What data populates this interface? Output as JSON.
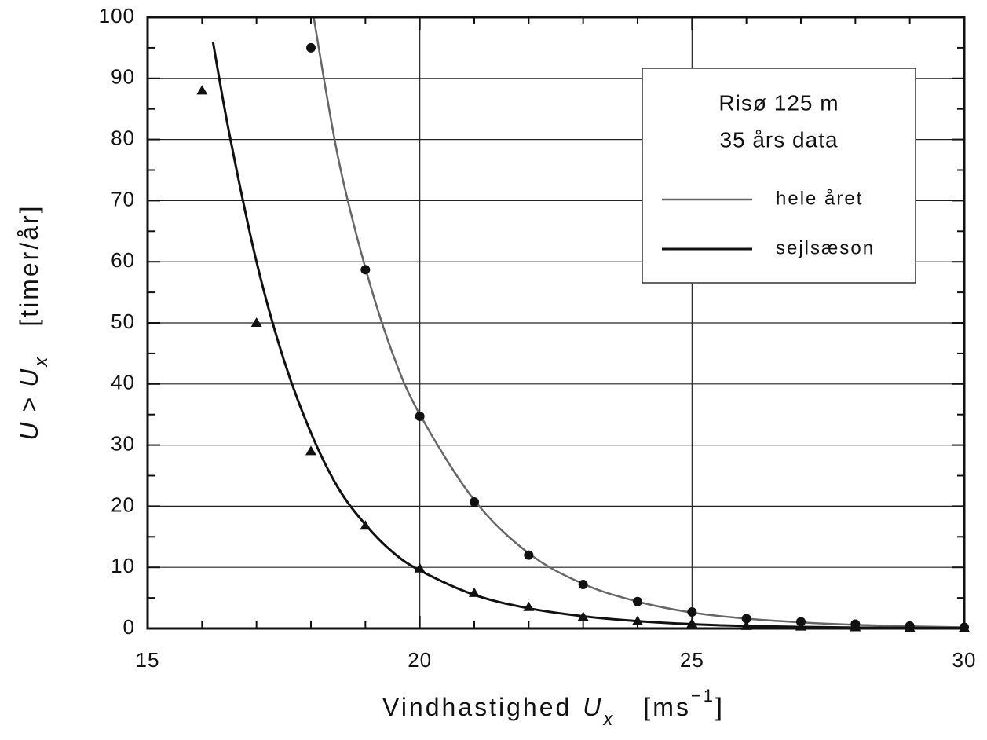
{
  "chart_data": {
    "type": "line",
    "legend_title": [
      "Risø 125 m",
      "35 års data"
    ],
    "xlabel": [
      "Vindhastighed",
      "U",
      "x",
      "[ms",
      "−1",
      "]"
    ],
    "ylabel": [
      "U",
      ">",
      "U",
      "x",
      "[timer/år]"
    ],
    "xlim": [
      15,
      30
    ],
    "ylim": [
      0,
      100
    ],
    "xticks": [
      15,
      20,
      25,
      30
    ],
    "yticks": [
      0,
      10,
      20,
      30,
      40,
      50,
      60,
      70,
      80,
      90,
      100
    ],
    "xminorticks": [
      16,
      17,
      18,
      19,
      21,
      22,
      23,
      24,
      26,
      27,
      28,
      29
    ],
    "yminorticks": [
      5,
      15,
      25,
      35,
      45,
      55,
      65,
      75,
      85,
      95
    ],
    "grid": true,
    "series": [
      {
        "name": "hele året",
        "color": "#666666",
        "marker": "circle",
        "x": [
          18,
          19,
          20,
          21,
          22,
          23,
          24,
          25,
          26,
          27,
          28,
          29,
          30
        ],
        "values": [
          95,
          58.7,
          34.7,
          20.7,
          12,
          7.2,
          4.4,
          2.7,
          1.6,
          1.1,
          0.7,
          0.4,
          0.2
        ],
        "fit_x": [
          18.05,
          18.5,
          19,
          19.5,
          20,
          21,
          22,
          23,
          24,
          25,
          26,
          27,
          28,
          29,
          30
        ],
        "fit_values": [
          100,
          77,
          59,
          45,
          35,
          21,
          12.3,
          7.3,
          4.4,
          2.6,
          1.6,
          1,
          0.6,
          0.35,
          0.2
        ]
      },
      {
        "name": "sejlsæson",
        "color": "#111111",
        "marker": "triangle",
        "x": [
          16,
          17,
          18,
          19,
          20,
          21,
          22,
          23,
          24,
          25,
          26,
          27,
          28,
          29,
          30
        ],
        "values": [
          88,
          50,
          29,
          16.8,
          9.8,
          5.8,
          3.5,
          1.9,
          1.2,
          0.8,
          0.4,
          0.3,
          0.2,
          0.1,
          0.1
        ],
        "fit_x": [
          16.2,
          16.5,
          17,
          17.5,
          18,
          18.5,
          19,
          19.5,
          20,
          21,
          22,
          23,
          24,
          25,
          26,
          27,
          28,
          29,
          30
        ],
        "fit_values": [
          96,
          81,
          60,
          44,
          32,
          23,
          17,
          12.5,
          9.5,
          5.5,
          3.3,
          2,
          1.2,
          0.7,
          0.4,
          0.25,
          0.15,
          0.1,
          0.05
        ]
      }
    ]
  }
}
